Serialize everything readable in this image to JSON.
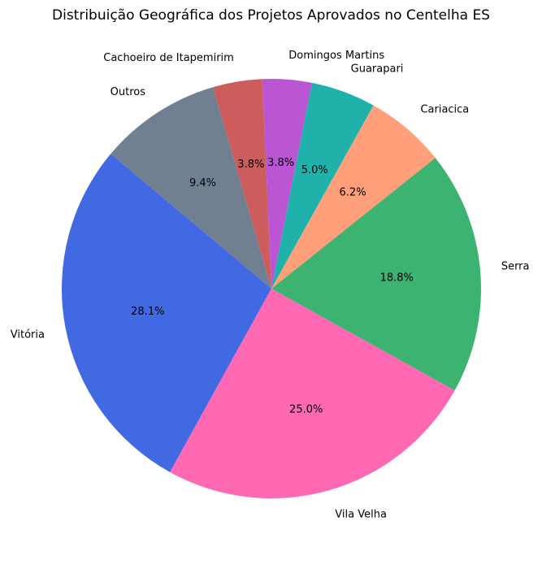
{
  "chart_data": {
    "type": "pie",
    "title": "Distribuição Geográfica dos Projetos Aprovados no Centelha ES",
    "startangle_deg": 140,
    "direction": "counterclockwise",
    "slices": [
      {
        "label": "Vitória",
        "value": 28.1,
        "pct_text": "28.1%",
        "color": "#4169E1"
      },
      {
        "label": "Vila Velha",
        "value": 25.0,
        "pct_text": "25.0%",
        "color": "#FF69B4"
      },
      {
        "label": "Serra",
        "value": 18.8,
        "pct_text": "18.8%",
        "color": "#3CB371"
      },
      {
        "label": "Cariacica",
        "value": 6.2,
        "pct_text": "6.2%",
        "color": "#FFA07A"
      },
      {
        "label": "Guarapari",
        "value": 5.0,
        "pct_text": "5.0%",
        "color": "#20B2AA"
      },
      {
        "label": "Domingos Martins",
        "value": 3.8,
        "pct_text": "3.8%",
        "color": "#BA55D3"
      },
      {
        "label": "Cachoeiro de Itapemirim",
        "value": 3.8,
        "pct_text": "3.8%",
        "color": "#CD5C5C"
      },
      {
        "label": "Outros",
        "value": 9.4,
        "pct_text": "9.4%",
        "color": "#708090"
      }
    ]
  }
}
